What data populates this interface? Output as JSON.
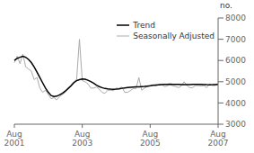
{
  "chart_data": {
    "type": "line",
    "y_label": "no.",
    "categories": [
      "Aug\n2001",
      null,
      null,
      null,
      null,
      null,
      null,
      null,
      null,
      null,
      null,
      null,
      null,
      null,
      null,
      null,
      null,
      null,
      null,
      null,
      null,
      null,
      null,
      null,
      "Aug\n2003",
      null,
      null,
      null,
      null,
      null,
      null,
      null,
      null,
      null,
      null,
      null,
      null,
      null,
      null,
      null,
      null,
      null,
      null,
      null,
      null,
      null,
      null,
      null,
      "Aug\n2005",
      null,
      null,
      null,
      null,
      null,
      null,
      null,
      null,
      null,
      null,
      null,
      null,
      null,
      null,
      null,
      null,
      null,
      null,
      null,
      null,
      null,
      null,
      null,
      "Aug\n2007"
    ],
    "series": [
      {
        "name": "Trend",
        "color": "#000000",
        "values": [
          6000,
          6100,
          6150,
          6200,
          6150,
          6050,
          5900,
          5700,
          5450,
          5200,
          4950,
          4700,
          4500,
          4350,
          4300,
          4320,
          4380,
          4460,
          4560,
          4680,
          4800,
          4950,
          5050,
          5100,
          5130,
          5120,
          5070,
          5010,
          4930,
          4840,
          4770,
          4720,
          4680,
          4660,
          4650,
          4645,
          4650,
          4665,
          4690,
          4710,
          4725,
          4740,
          4750,
          4755,
          4760,
          4770,
          4780,
          4795,
          4810,
          4830,
          4845,
          4855,
          4865,
          4875,
          4880,
          4885,
          4880,
          4875,
          4870,
          4865,
          4860,
          4860,
          4865,
          4870,
          4875,
          4875,
          4870,
          4865,
          4860,
          4858,
          4860,
          4865,
          4875
        ]
      },
      {
        "name": "Seasonally Adjusted",
        "color": "#aaaaaa",
        "values": [
          5900,
          6200,
          5850,
          6300,
          5700,
          5600,
          5500,
          5100,
          5200,
          4700,
          4500,
          4600,
          4400,
          4200,
          4250,
          4150,
          4300,
          4400,
          4500,
          4700,
          4850,
          5000,
          5100,
          7000,
          5050,
          5000,
          4900,
          4700,
          4700,
          4750,
          4650,
          4500,
          4450,
          4600,
          4600,
          4580,
          4700,
          4680,
          4750,
          4500,
          4500,
          4580,
          4680,
          4680,
          5200,
          4600,
          4700,
          4780,
          4800,
          4850,
          4800,
          4870,
          4880,
          4780,
          4800,
          4880,
          4800,
          4780,
          4720,
          4800,
          5000,
          4820,
          4720,
          4720,
          4820,
          4820,
          4800,
          4820,
          4720,
          4900,
          4820,
          4820,
          4920
        ]
      }
    ],
    "ylim": [
      3000,
      8000
    ],
    "yticks": [
      3000,
      4000,
      5000,
      6000,
      7000,
      8000
    ],
    "grid": false,
    "legend": "upper right"
  }
}
